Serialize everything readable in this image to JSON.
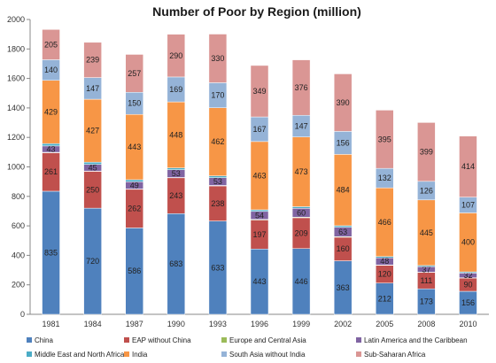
{
  "chart_data": {
    "type": "bar",
    "stacked": true,
    "title": "Number of Poor by Region (million)",
    "xlabel": "",
    "ylabel": "",
    "ylim": [
      0,
      2000
    ],
    "yticks": [
      0,
      200,
      400,
      600,
      800,
      1000,
      1200,
      1400,
      1600,
      1800,
      2000
    ],
    "grid": false,
    "legend_position": "bottom",
    "categories": [
      "1981",
      "1984",
      "1987",
      "1990",
      "1993",
      "1996",
      "1999",
      "2002",
      "2005",
      "2008",
      "2010"
    ],
    "series": [
      {
        "name": "China",
        "color": "#4f81bd",
        "values": [
          835,
          720,
          586,
          683,
          633,
          443,
          446,
          363,
          212,
          173,
          156
        ]
      },
      {
        "name": "EAP without China",
        "color": "#c0504d",
        "values": [
          261,
          250,
          262,
          243,
          238,
          197,
          209,
          160,
          120,
          111,
          90
        ]
      },
      {
        "name": "Europe and Central Asia",
        "color": "#9bbb59",
        "values": [
          3,
          2,
          2,
          2,
          3,
          4,
          4,
          4,
          3,
          2,
          2
        ]
      },
      {
        "name": "Latin America and the Caribbean",
        "color": "#8064a2",
        "values": [
          43,
          45,
          49,
          53,
          53,
          54,
          60,
          63,
          48,
          37,
          32
        ]
      },
      {
        "name": "Middle East and North Africa",
        "color": "#4bacc6",
        "values": [
          16,
          15,
          14,
          12,
          12,
          11,
          11,
          11,
          9,
          8,
          8
        ]
      },
      {
        "name": "India",
        "color": "#f79646",
        "values": [
          429,
          427,
          443,
          448,
          462,
          463,
          473,
          484,
          466,
          445,
          400
        ]
      },
      {
        "name": "South Asia without India",
        "color": "#95b3d7",
        "values": [
          140,
          147,
          150,
          169,
          170,
          167,
          147,
          156,
          132,
          126,
          107
        ]
      },
      {
        "name": "Sub-Saharan Africa",
        "color": "#da9694",
        "values": [
          205,
          239,
          257,
          290,
          330,
          349,
          376,
          390,
          395,
          399,
          414
        ]
      }
    ],
    "labeled_series": [
      "China",
      "EAP without China",
      "Latin America and the Caribbean",
      "India",
      "South Asia without India",
      "Sub-Saharan Africa"
    ]
  }
}
